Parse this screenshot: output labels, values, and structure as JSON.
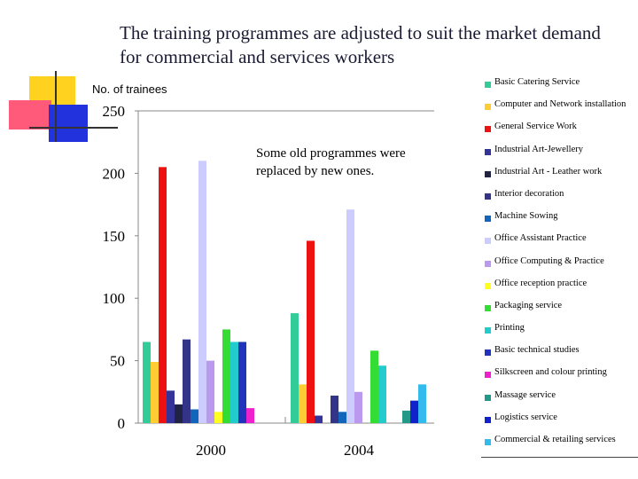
{
  "slide": {
    "title": "The training programmes are adjusted to suit the market demand for commercial and services workers",
    "annotation": "Some old programmes were replaced by new ones.",
    "decor_colors": {
      "yellow": "#ffd21f",
      "pink": "#ff5a7a",
      "blue": "#2233dd",
      "line": "#333333"
    }
  },
  "chart_data": {
    "type": "bar",
    "ylabel": "No. of trainees",
    "ylim": [
      0,
      250
    ],
    "yticks": [
      0,
      50,
      100,
      150,
      200,
      250
    ],
    "grid": false,
    "legend_position": "right",
    "categories": [
      "2000",
      "2004"
    ],
    "series": [
      {
        "name": "Basic Catering Service",
        "color": "#33cc99",
        "values": [
          65,
          88
        ]
      },
      {
        "name": "Computer and Network installation",
        "color": "#ffcc33",
        "values": [
          49,
          31
        ]
      },
      {
        "name": "General Service Work",
        "color": "#ee1111",
        "values": [
          205,
          146
        ]
      },
      {
        "name": "Industrial Art-Jewellery",
        "color": "#333399",
        "values": [
          26,
          6
        ]
      },
      {
        "name": "Industrial Art - Leather work",
        "color": "#222244",
        "values": [
          15,
          0
        ]
      },
      {
        "name": "Interior decoration",
        "color": "#333388",
        "values": [
          67,
          22
        ]
      },
      {
        "name": "Machine Sowing",
        "color": "#1166bb",
        "values": [
          11,
          9
        ]
      },
      {
        "name": "Office Assistant Practice",
        "color": "#ccccff",
        "values": [
          210,
          171
        ]
      },
      {
        "name": "Office Computing & Practice",
        "color": "#bb99ee",
        "values": [
          50,
          25
        ]
      },
      {
        "name": "Office reception practice",
        "color": "#ffff22",
        "values": [
          9,
          0
        ]
      },
      {
        "name": "Packaging service",
        "color": "#33dd33",
        "values": [
          75,
          58
        ]
      },
      {
        "name": "Printing",
        "color": "#22cccc",
        "values": [
          65,
          46
        ]
      },
      {
        "name": "Basic technical studies",
        "color": "#2233bb",
        "values": [
          65,
          0
        ]
      },
      {
        "name": "Silkscreen and colour printing",
        "color": "#ee22cc",
        "values": [
          12,
          0
        ]
      },
      {
        "name": "Massage service",
        "color": "#229988",
        "values": [
          0,
          10
        ]
      },
      {
        "name": "Logistics service",
        "color": "#1122cc",
        "values": [
          0,
          18
        ]
      },
      {
        "name": "Commercial & retailing services",
        "color": "#33bbee",
        "values": [
          0,
          31
        ]
      }
    ]
  }
}
